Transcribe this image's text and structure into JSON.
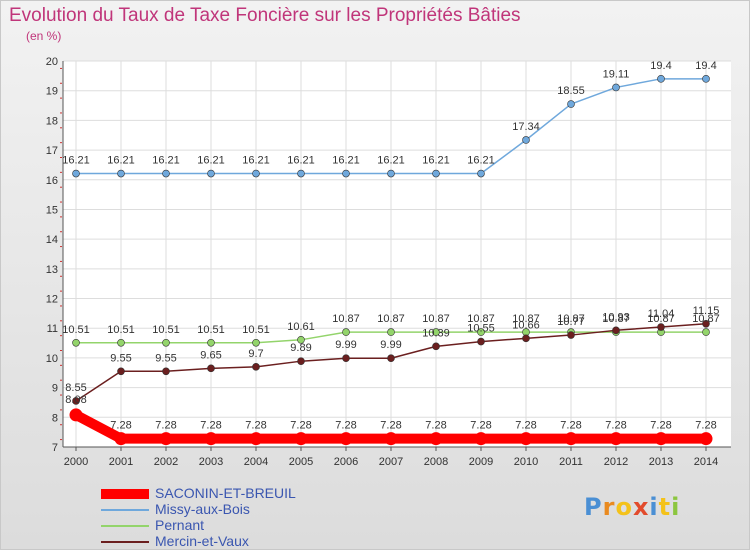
{
  "chart_data": {
    "type": "line",
    "title": "Evolution du Taux de Taxe Foncière sur les Propriétés Bâties",
    "ylabel": "(en %)",
    "xlabel": "",
    "ylim": [
      7,
      20
    ],
    "yticks": [
      "7",
      "8",
      "9",
      "10",
      "11",
      "12",
      "13",
      "14",
      "15",
      "16",
      "17",
      "18",
      "19",
      "20"
    ],
    "categories": [
      "2000",
      "2001",
      "2002",
      "2003",
      "2004",
      "2005",
      "2006",
      "2007",
      "2008",
      "2009",
      "2010",
      "2011",
      "2012",
      "2013",
      "2014"
    ],
    "series": [
      {
        "name": "SACONIN-ET-BREUIL",
        "color": "#ff0000",
        "values": [
          8.08,
          7.28,
          7.28,
          7.28,
          7.28,
          7.28,
          7.28,
          7.28,
          7.28,
          7.28,
          7.28,
          7.28,
          7.28,
          7.28,
          7.28
        ],
        "labels": [
          "8.08",
          "7.28",
          "7.28",
          "7.28",
          "7.28",
          "7.28",
          "7.28",
          "7.28",
          "7.28",
          "7.28",
          "7.28",
          "7.28",
          "7.28",
          "7.28",
          "7.28"
        ]
      },
      {
        "name": "Missy-aux-Bois",
        "color": "#6fa8dc",
        "values": [
          16.21,
          16.21,
          16.21,
          16.21,
          16.21,
          16.21,
          16.21,
          16.21,
          16.21,
          16.21,
          17.34,
          18.55,
          19.11,
          19.4,
          19.4
        ],
        "labels": [
          "16.21",
          "16.21",
          "16.21",
          "16.21",
          "16.21",
          "16.21",
          "16.21",
          "16.21",
          "16.21",
          "16.21",
          "17.34",
          "18.55",
          "19.11",
          "19.4",
          "19.4"
        ]
      },
      {
        "name": "Pernant",
        "color": "#93d46b",
        "values": [
          10.51,
          10.51,
          10.51,
          10.51,
          10.51,
          10.61,
          10.87,
          10.87,
          10.87,
          10.87,
          10.87,
          10.87,
          10.87,
          10.87,
          10.87
        ],
        "labels": [
          "10.51",
          "10.51",
          "10.51",
          "10.51",
          "10.51",
          "10.61",
          "10.87",
          "10.87",
          "10.87",
          "10.87",
          "10.87",
          "10.87",
          "10.87",
          "10.87",
          "10.87"
        ]
      },
      {
        "name": "Mercin-et-Vaux",
        "color": "#6b1f1f",
        "values": [
          8.55,
          9.55,
          9.55,
          9.65,
          9.7,
          9.89,
          9.99,
          9.99,
          10.39,
          10.55,
          10.66,
          10.77,
          10.93,
          11.04,
          11.15
        ],
        "labels": [
          "8.55",
          "9.55",
          "9.55",
          "9.65",
          "9.7",
          "9.89",
          "9.99",
          "9.99",
          "10.39",
          "10.55",
          "10.66",
          "10.77",
          "10.93",
          "11.04",
          "11.15"
        ]
      }
    ]
  },
  "logo": {
    "text": "Proxiti",
    "letters": [
      {
        "ch": "P",
        "color": "#4a8fd4"
      },
      {
        "ch": "r",
        "color": "#e98a1f"
      },
      {
        "ch": "o",
        "color": "#f4c21a"
      },
      {
        "ch": "x",
        "color": "#e24b2c"
      },
      {
        "ch": "i",
        "color": "#4a8fd4"
      },
      {
        "ch": "t",
        "color": "#f4c21a"
      },
      {
        "ch": "i",
        "color": "#8cc63f"
      }
    ]
  }
}
